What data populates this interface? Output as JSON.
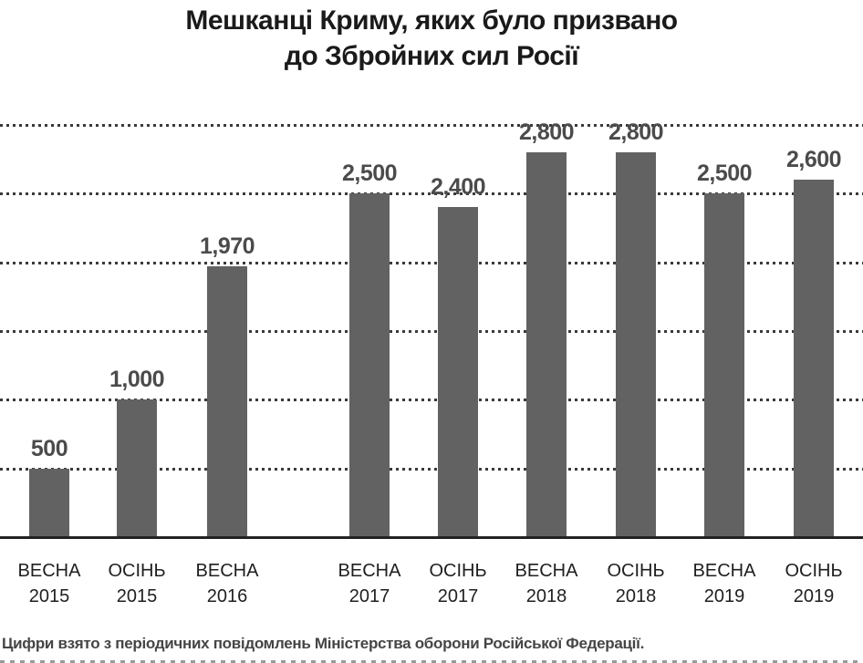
{
  "title": {
    "line1": "Мешканці Криму, яких було призвано",
    "line2": "до Збройних сил Росії"
  },
  "footer": {
    "text": "Цифри взято з періодичних повідомлень Міністерства оборони Російської Федерації."
  },
  "colors": {
    "bar": "#626262",
    "title_text": "#1a1a1a",
    "value_label": "#4b4b4b",
    "axis_label": "#1f1f1f",
    "gridline": "#3a3a3a",
    "baseline": "#222222",
    "background": "#ffffff"
  },
  "chart_data": {
    "type": "bar",
    "title": "Мешканці Криму, яких було призвано до Збройних сил Росії",
    "categories": [
      {
        "season": "ВЕСНА",
        "year": "2015"
      },
      {
        "season": "ОСІНЬ",
        "year": "2015"
      },
      {
        "season": "ВЕСНА",
        "year": "2016"
      },
      {
        "season": "ВЕСНА",
        "year": "2017"
      },
      {
        "season": "ОСІНЬ",
        "year": "2017"
      },
      {
        "season": "ВЕСНА",
        "year": "2018"
      },
      {
        "season": "ОСІНЬ",
        "year": "2018"
      },
      {
        "season": "ВЕСНА",
        "year": "2019"
      },
      {
        "season": "ОСІНЬ",
        "year": "2019"
      }
    ],
    "values": [
      500,
      1000,
      1970,
      2500,
      2400,
      2800,
      2800,
      2500,
      2600
    ],
    "value_labels": [
      "500",
      "1,000",
      "1,970",
      "2,500",
      "2,400",
      "2,800",
      "2,800",
      "2,500",
      "2,600"
    ],
    "xlabel": "",
    "ylabel": "",
    "ylim": [
      0,
      3000
    ],
    "gridline_values": [
      500,
      1000,
      1500,
      2000,
      2500,
      3000
    ],
    "grid": "horizontal dotted, no y tick labels",
    "legend": "none",
    "gap_note": "no bar for ОСІНЬ 2016 — visible gap between ВЕСНА 2016 and ВЕСНА 2017",
    "source_note": "Цифри взято з періодичних повідомлень Міністерства оборони Російської Федерації."
  }
}
